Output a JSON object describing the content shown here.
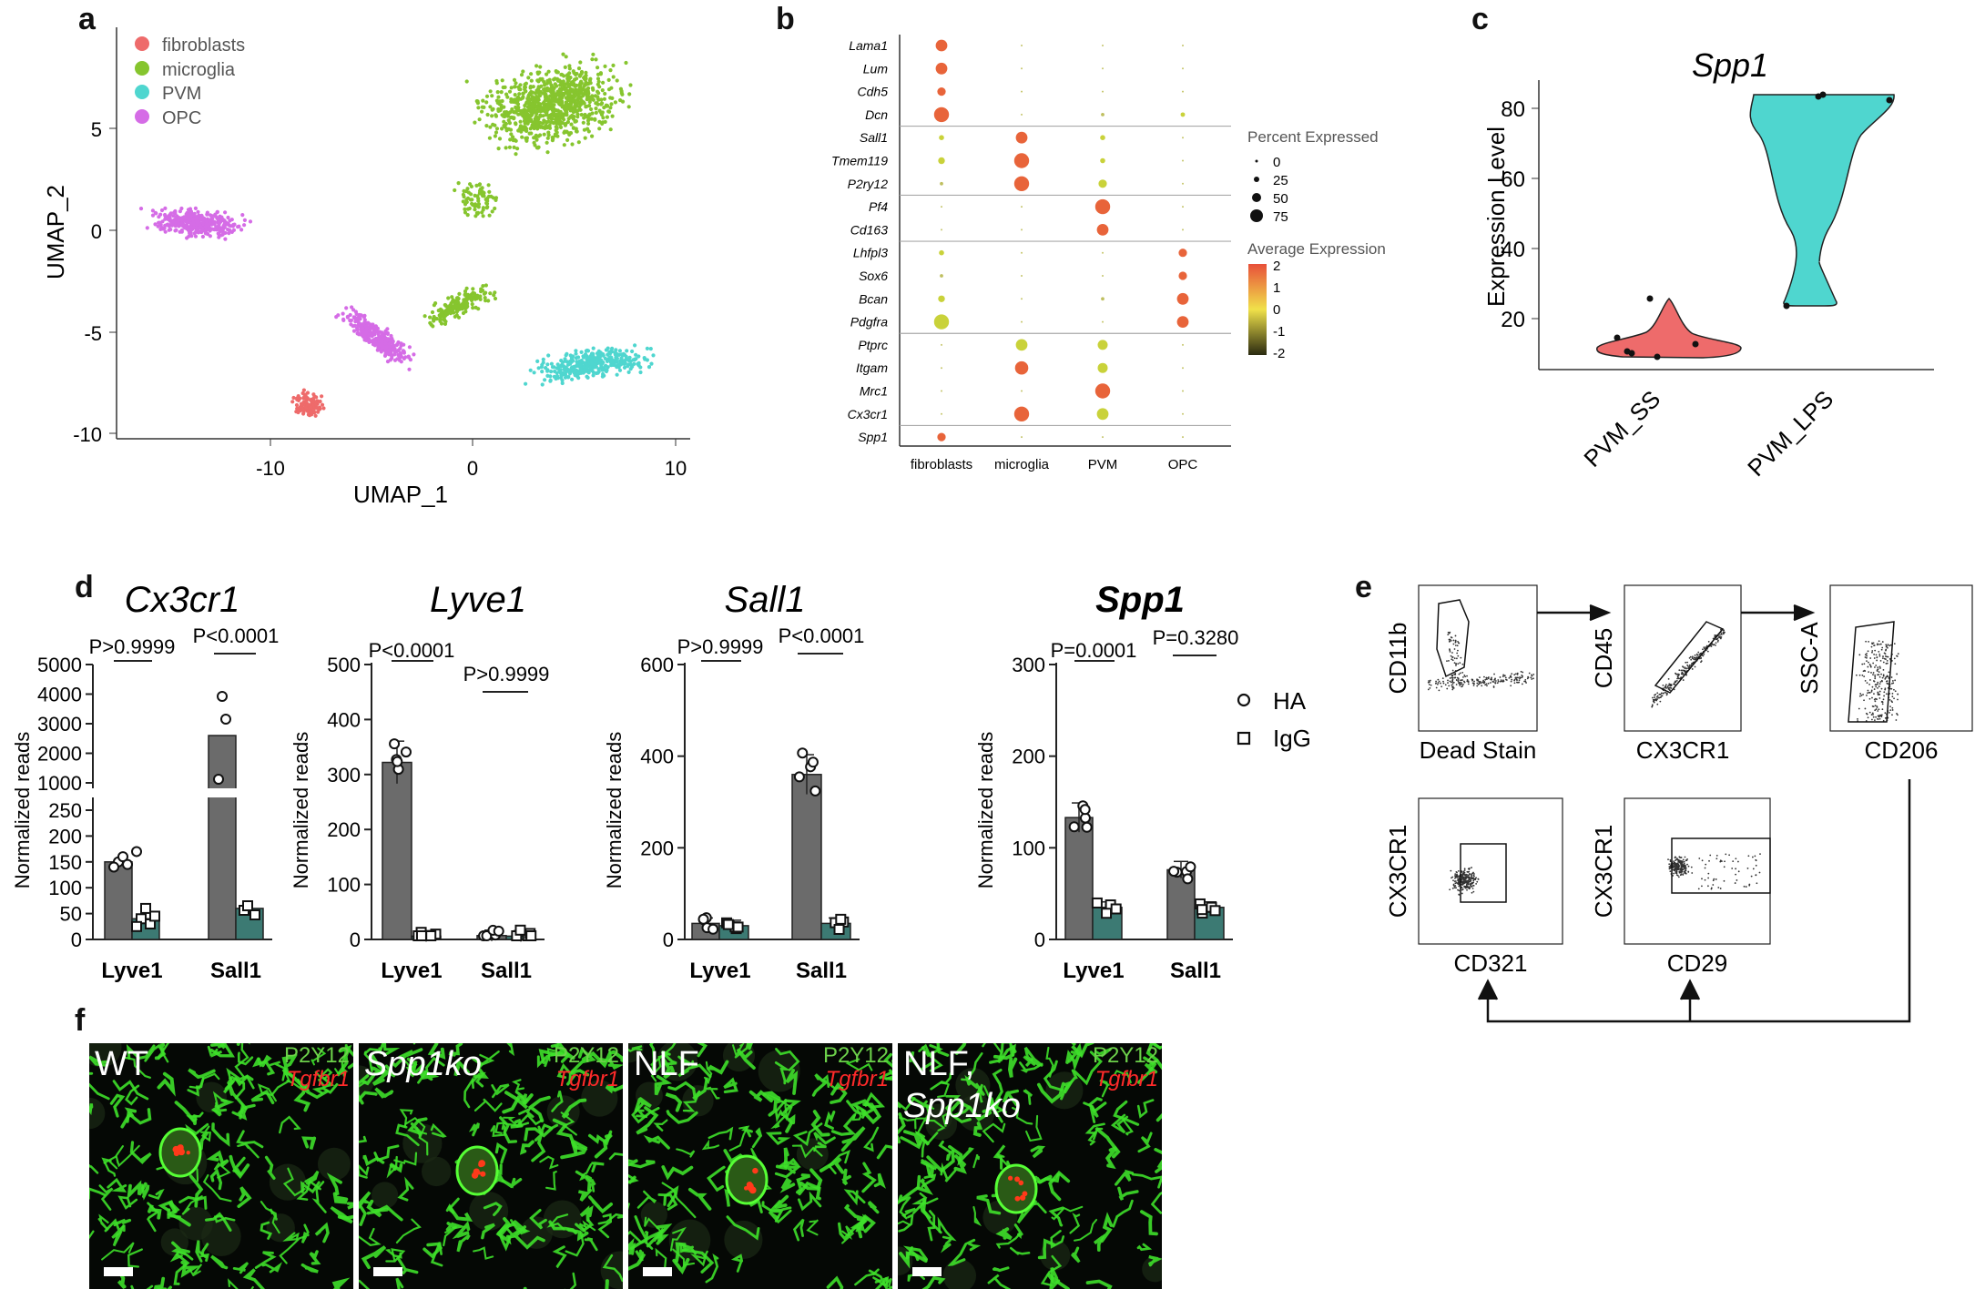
{
  "panel_labels": {
    "a": "a",
    "b": "b",
    "c": "c",
    "d": "d",
    "e": "e",
    "f": "f"
  },
  "colors": {
    "fibroblasts": "#ee6b6b",
    "microglia": "#86c52e",
    "PVM": "#4fd6cf",
    "OPC": "#d56ce6",
    "bar_dark": "#6b6b6b",
    "bar_teal": "#3c7a73"
  },
  "panel_a": {
    "legend": [
      "fibroblasts",
      "microglia",
      "PVM",
      "OPC"
    ],
    "xlabel": "UMAP_1",
    "ylabel": "UMAP_2",
    "xticks": [
      "-10",
      "0",
      "10"
    ],
    "yticks": [
      "5",
      "0",
      "-5",
      "-10"
    ]
  },
  "panel_b": {
    "genes": [
      "Lama1",
      "Lum",
      "Cdh5",
      "Dcn",
      "Sall1",
      "Tmem119",
      "P2ry12",
      "Pf4",
      "Cd163",
      "Lhfpl3",
      "Sox6",
      "Bcan",
      "Pdgfra",
      "Ptprc",
      "Itgam",
      "Mrc1",
      "Cx3cr1",
      "Spp1"
    ],
    "clusters": [
      "fibroblasts",
      "microglia",
      "PVM",
      "OPC"
    ],
    "percent_title": "Percent Expressed",
    "percent_ticks": [
      "0",
      "25",
      "50",
      "75"
    ],
    "avg_title": "Average Expression",
    "avg_ticks": [
      "2",
      "1",
      "0",
      "-1",
      "-2"
    ],
    "dots": [
      [
        [
          3,
          2
        ],
        [
          0.2,
          0
        ],
        [
          0.2,
          0
        ],
        [
          0.2,
          0
        ]
      ],
      [
        [
          3,
          2
        ],
        [
          0.2,
          0
        ],
        [
          0.2,
          0
        ],
        [
          0.2,
          0
        ]
      ],
      [
        [
          2,
          2
        ],
        [
          0.2,
          0
        ],
        [
          0.2,
          0
        ],
        [
          0.2,
          0
        ]
      ],
      [
        [
          4,
          2
        ],
        [
          0.2,
          0
        ],
        [
          0.5,
          0
        ],
        [
          0.8,
          1
        ]
      ],
      [
        [
          1,
          1
        ],
        [
          3,
          2
        ],
        [
          1,
          1
        ],
        [
          0.2,
          0
        ]
      ],
      [
        [
          1.5,
          1
        ],
        [
          4,
          2
        ],
        [
          1,
          1
        ],
        [
          0.2,
          0
        ]
      ],
      [
        [
          0.5,
          0
        ],
        [
          4,
          2
        ],
        [
          2,
          1
        ],
        [
          0.2,
          0
        ]
      ],
      [
        [
          0.2,
          0
        ],
        [
          0.2,
          0
        ],
        [
          4,
          2
        ],
        [
          0.2,
          0
        ]
      ],
      [
        [
          0.2,
          0
        ],
        [
          0.2,
          0
        ],
        [
          3,
          2
        ],
        [
          0.2,
          0
        ]
      ],
      [
        [
          1,
          1
        ],
        [
          0.2,
          0
        ],
        [
          0.2,
          0
        ],
        [
          2,
          2
        ]
      ],
      [
        [
          0.5,
          0
        ],
        [
          0.2,
          0
        ],
        [
          0.2,
          0
        ],
        [
          2,
          2
        ]
      ],
      [
        [
          1.5,
          1
        ],
        [
          0.2,
          0
        ],
        [
          0.5,
          0
        ],
        [
          3,
          2
        ]
      ],
      [
        [
          4,
          1
        ],
        [
          0.2,
          0
        ],
        [
          0.2,
          0
        ],
        [
          3,
          2
        ]
      ],
      [
        [
          0.2,
          0
        ],
        [
          3,
          1.5
        ],
        [
          2.5,
          1.5
        ],
        [
          0.2,
          0
        ]
      ],
      [
        [
          0.2,
          0
        ],
        [
          3.5,
          2
        ],
        [
          2.5,
          1
        ],
        [
          0.2,
          0
        ]
      ],
      [
        [
          0.2,
          0
        ],
        [
          0.2,
          0
        ],
        [
          4,
          2
        ],
        [
          0.2,
          0
        ]
      ],
      [
        [
          0.2,
          0
        ],
        [
          4,
          2
        ],
        [
          3,
          1
        ],
        [
          0.2,
          0
        ]
      ],
      [
        [
          2,
          2
        ],
        [
          0.2,
          0
        ],
        [
          0.2,
          0
        ],
        [
          0.2,
          0
        ]
      ]
    ]
  },
  "panel_c": {
    "title": "Spp1",
    "ylabel": "Expression Level",
    "yticks": [
      "80",
      "60",
      "40",
      "20"
    ],
    "categories": [
      "PVM_SS",
      "PVM_LPS"
    ]
  },
  "panel_d": {
    "ylabel": "Normalized reads",
    "legend": [
      "HA",
      "IgG"
    ],
    "categories": [
      "Lyve1",
      "Sall1"
    ],
    "charts": [
      {
        "title": "Cx3cr1",
        "bold": false,
        "p1": "P>0.9999",
        "p2": "P<0.0001",
        "yticks_low": [
          "250",
          "200",
          "150",
          "100",
          "50",
          "0"
        ],
        "yticks_high": [
          "5000",
          "4000",
          "3000",
          "2000",
          "1000"
        ],
        "values": [
          150,
          40,
          2600,
          60
        ]
      },
      {
        "title": "Lyve1",
        "bold": false,
        "p1": "P<0.0001",
        "p2": "P>0.9999",
        "yticks": [
          "500",
          "400",
          "300",
          "200",
          "100",
          "0"
        ],
        "values": [
          322,
          6,
          7,
          6
        ]
      },
      {
        "title": "Sall1",
        "bold": false,
        "p1": "P>0.9999",
        "p2": "P<0.0001",
        "yticks": [
          "600",
          "400",
          "200",
          "0"
        ],
        "values": [
          35,
          30,
          360,
          35
        ]
      },
      {
        "title": "Spp1",
        "bold": true,
        "p1": "P=0.0001",
        "p2": "P=0.3280",
        "yticks": [
          "300",
          "200",
          "100",
          "0"
        ],
        "values": [
          133,
          35,
          76,
          35
        ]
      }
    ]
  },
  "panel_e": {
    "plots": [
      {
        "ylabel": "CD11b",
        "xlabel": "Dead Stain"
      },
      {
        "ylabel": "CD45",
        "xlabel": "CX3CR1"
      },
      {
        "ylabel": "SSC-A",
        "xlabel": "CD206"
      },
      {
        "ylabel": "CX3CR1",
        "xlabel": "CD321"
      },
      {
        "ylabel": "CX3CR1",
        "xlabel": "CD29"
      }
    ]
  },
  "panel_f": {
    "images": [
      {
        "label": "WT",
        "italic": false,
        "label2": ""
      },
      {
        "label": "Spp1ko",
        "italic": true,
        "label2": ""
      },
      {
        "label": "NLF",
        "italic": false,
        "label2": ""
      },
      {
        "label": "NLF,",
        "italic": false,
        "label2": "Spp1ko"
      }
    ],
    "green_label": "P2Y12",
    "red_label": "Tgfbr1"
  }
}
